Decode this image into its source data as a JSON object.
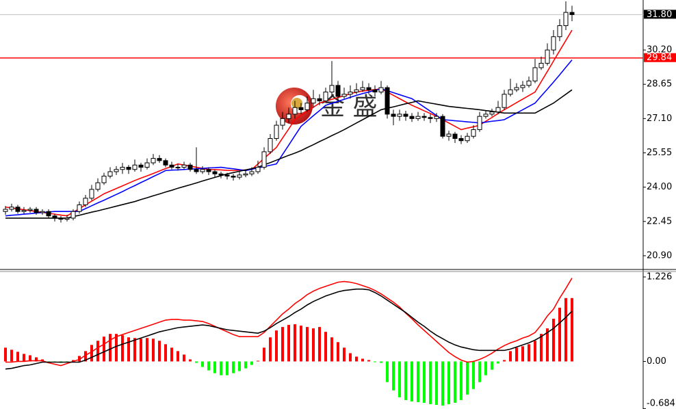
{
  "chart_data": [
    {
      "type": "candlestick",
      "watermark": "金 盛",
      "up_color": "#ffffff",
      "down_color": "#000000",
      "ylim": [
        20.31,
        32.46
      ],
      "yticks": [
        {
          "value": 30.2,
          "label": "30.20"
        },
        {
          "value": 28.65,
          "label": "28.65"
        },
        {
          "value": 27.1,
          "label": "27.10"
        },
        {
          "value": 25.55,
          "label": "25.55"
        },
        {
          "value": 24.0,
          "label": "24.00"
        },
        {
          "value": 22.45,
          "label": "22.45"
        },
        {
          "value": 20.9,
          "label": "20.90"
        }
      ],
      "hlines": [
        {
          "value": 31.8,
          "label": "31.80",
          "color": "#c0c0c0",
          "label_color": "#000000"
        },
        {
          "value": 29.84,
          "label": "29.84",
          "color": "#ff0000",
          "label_color": "#ff0000"
        }
      ],
      "ohlc": [
        [
          22.9,
          23.15,
          22.75,
          23.0
        ],
        [
          23.0,
          23.25,
          22.9,
          23.1
        ],
        [
          23.1,
          23.2,
          22.8,
          22.9
        ],
        [
          22.9,
          23.1,
          22.8,
          22.95
        ],
        [
          22.95,
          23.1,
          22.85,
          23.0
        ],
        [
          23.0,
          23.1,
          22.75,
          22.85
        ],
        [
          22.85,
          23.0,
          22.75,
          22.9
        ],
        [
          22.9,
          23.0,
          22.6,
          22.7
        ],
        [
          22.7,
          22.8,
          22.45,
          22.6
        ],
        [
          22.6,
          22.7,
          22.4,
          22.55
        ],
        [
          22.55,
          22.75,
          22.45,
          22.6
        ],
        [
          22.6,
          23.0,
          22.5,
          22.9
        ],
        [
          22.9,
          23.35,
          22.8,
          23.2
        ],
        [
          23.2,
          23.65,
          23.1,
          23.5
        ],
        [
          23.5,
          24.1,
          23.4,
          23.9
        ],
        [
          23.9,
          24.4,
          23.8,
          24.2
        ],
        [
          24.2,
          24.65,
          24.1,
          24.5
        ],
        [
          24.5,
          24.9,
          24.4,
          24.7
        ],
        [
          24.7,
          24.95,
          24.55,
          24.8
        ],
        [
          24.8,
          25.1,
          24.6,
          24.9
        ],
        [
          24.9,
          25.0,
          24.6,
          24.8
        ],
        [
          24.8,
          25.25,
          24.7,
          25.0
        ],
        [
          25.0,
          25.1,
          24.7,
          24.9
        ],
        [
          24.9,
          25.3,
          24.8,
          25.1
        ],
        [
          25.1,
          25.5,
          25.0,
          25.3
        ],
        [
          25.3,
          25.45,
          25.1,
          25.2
        ],
        [
          25.2,
          25.3,
          24.9,
          25.0
        ],
        [
          25.0,
          25.15,
          24.8,
          24.9
        ],
        [
          24.9,
          25.05,
          24.75,
          24.9
        ],
        [
          24.9,
          25.15,
          24.8,
          25.0
        ],
        [
          25.0,
          25.1,
          24.7,
          24.8
        ],
        [
          24.8,
          25.8,
          24.6,
          24.7
        ],
        [
          24.7,
          24.95,
          24.6,
          24.8
        ],
        [
          24.8,
          24.9,
          24.55,
          24.7
        ],
        [
          24.7,
          24.8,
          24.45,
          24.6
        ],
        [
          24.6,
          24.7,
          24.4,
          24.55
        ],
        [
          24.55,
          24.65,
          24.35,
          24.5
        ],
        [
          24.5,
          24.6,
          24.3,
          24.45
        ],
        [
          24.45,
          24.7,
          24.35,
          24.55
        ],
        [
          24.55,
          24.8,
          24.45,
          24.6
        ],
        [
          24.6,
          24.9,
          24.5,
          24.7
        ],
        [
          24.7,
          25.2,
          24.6,
          24.9
        ],
        [
          24.9,
          25.8,
          24.8,
          25.6
        ],
        [
          25.6,
          26.4,
          25.5,
          26.2
        ],
        [
          26.2,
          27.0,
          26.1,
          26.8
        ],
        [
          26.8,
          27.4,
          26.6,
          27.1
        ],
        [
          27.1,
          27.6,
          26.9,
          27.3
        ],
        [
          27.3,
          27.9,
          27.1,
          27.6
        ],
        [
          27.6,
          27.8,
          27.3,
          27.5
        ],
        [
          27.5,
          28.1,
          27.4,
          27.8
        ],
        [
          27.8,
          28.4,
          27.6,
          28.0
        ],
        [
          28.0,
          28.2,
          27.7,
          27.9
        ],
        [
          27.9,
          28.5,
          27.8,
          28.3
        ],
        [
          28.3,
          29.7,
          28.1,
          28.6
        ],
        [
          28.6,
          28.8,
          27.9,
          28.1
        ],
        [
          28.1,
          28.5,
          28.0,
          28.2
        ],
        [
          28.2,
          28.6,
          28.0,
          28.3
        ],
        [
          28.3,
          28.7,
          28.2,
          28.4
        ],
        [
          28.4,
          28.8,
          28.3,
          28.5
        ],
        [
          28.5,
          28.7,
          28.2,
          28.4
        ],
        [
          28.4,
          28.6,
          28.1,
          28.3
        ],
        [
          28.3,
          28.8,
          28.2,
          28.5
        ],
        [
          28.5,
          28.6,
          27.1,
          27.3
        ],
        [
          27.3,
          27.5,
          26.8,
          27.2
        ],
        [
          27.2,
          27.5,
          27.0,
          27.3
        ],
        [
          27.3,
          27.45,
          27.0,
          27.2
        ],
        [
          27.2,
          27.35,
          26.95,
          27.1
        ],
        [
          27.1,
          27.4,
          27.0,
          27.2
        ],
        [
          27.2,
          27.35,
          27.0,
          27.15
        ],
        [
          27.15,
          27.3,
          26.9,
          27.1
        ],
        [
          27.1,
          27.35,
          26.95,
          27.2
        ],
        [
          27.2,
          27.3,
          26.2,
          26.3
        ],
        [
          26.3,
          26.55,
          26.1,
          26.4
        ],
        [
          26.4,
          26.5,
          26.0,
          26.2
        ],
        [
          26.2,
          26.35,
          25.95,
          26.1
        ],
        [
          26.1,
          26.45,
          26.0,
          26.3
        ],
        [
          26.3,
          26.8,
          26.2,
          26.6
        ],
        [
          26.6,
          27.4,
          26.5,
          27.2
        ],
        [
          27.2,
          27.45,
          27.1,
          27.3
        ],
        [
          27.3,
          27.55,
          27.2,
          27.4
        ],
        [
          27.4,
          27.9,
          27.3,
          27.6
        ],
        [
          27.6,
          28.4,
          27.5,
          28.2
        ],
        [
          28.2,
          28.9,
          28.1,
          28.4
        ],
        [
          28.4,
          28.7,
          28.3,
          28.5
        ],
        [
          28.5,
          28.8,
          28.3,
          28.6
        ],
        [
          28.6,
          29.0,
          28.5,
          28.8
        ],
        [
          28.8,
          29.8,
          28.7,
          29.4
        ],
        [
          29.4,
          29.9,
          29.3,
          29.6
        ],
        [
          29.6,
          30.5,
          29.5,
          30.2
        ],
        [
          30.2,
          31.1,
          30.0,
          30.8
        ],
        [
          30.8,
          31.6,
          30.6,
          31.3
        ],
        [
          31.3,
          32.4,
          31.1,
          31.9
        ],
        [
          31.9,
          32.2,
          31.5,
          31.8
        ]
      ],
      "series": [
        {
          "color": "#ff0000",
          "values": [
            23.1,
            23.06,
            23.02,
            22.98,
            22.94,
            22.9,
            22.86,
            22.82,
            22.78,
            22.74,
            22.7,
            22.87,
            23.03,
            23.2,
            23.37,
            23.53,
            23.7,
            23.82,
            23.94,
            24.06,
            24.18,
            24.3,
            24.41,
            24.51,
            24.62,
            24.73,
            24.84,
            24.94,
            25.05,
            25.0,
            24.95,
            24.9,
            24.85,
            24.8,
            24.79,
            24.78,
            24.76,
            24.75,
            24.77,
            24.78,
            24.8,
            25.05,
            25.3,
            25.55,
            25.8,
            26.22,
            26.63,
            27.05,
            27.24,
            27.43,
            27.61,
            27.8,
            27.88,
            27.97,
            28.05,
            28.13,
            28.22,
            28.3,
            28.34,
            28.38,
            28.41,
            28.45,
            28.3,
            28.15,
            28.0,
            27.85,
            27.7,
            27.58,
            27.45,
            27.33,
            27.2,
            27.05,
            26.9,
            26.75,
            26.6,
            26.67,
            26.73,
            26.8,
            26.98,
            27.15,
            27.33,
            27.5,
            27.66,
            27.82,
            27.98,
            28.14,
            28.3,
            28.77,
            29.23,
            29.7,
            30.17,
            30.63,
            31.1
          ]
        },
        {
          "color": "#0000ff",
          "values": [
            22.7,
            22.73,
            22.75,
            22.78,
            22.8,
            22.83,
            22.85,
            22.88,
            22.9,
            22.9,
            22.9,
            22.9,
            22.9,
            23.03,
            23.16,
            23.29,
            23.41,
            23.54,
            23.67,
            23.8,
            23.94,
            24.07,
            24.21,
            24.34,
            24.48,
            24.61,
            24.75,
            24.77,
            24.78,
            24.8,
            24.82,
            24.83,
            24.85,
            24.87,
            24.88,
            24.9,
            24.86,
            24.83,
            24.79,
            24.75,
            24.81,
            24.87,
            24.93,
            24.99,
            25.05,
            25.48,
            25.9,
            26.33,
            26.75,
            26.99,
            27.23,
            27.46,
            27.7,
            27.79,
            27.88,
            27.97,
            28.06,
            28.15,
            28.23,
            28.3,
            28.38,
            28.45,
            28.36,
            28.27,
            28.18,
            28.09,
            28.0,
            27.81,
            27.62,
            27.43,
            27.24,
            27.05,
            27.03,
            27.0,
            26.98,
            26.95,
            26.93,
            26.9,
            26.94,
            26.98,
            27.01,
            27.05,
            27.2,
            27.35,
            27.5,
            27.65,
            27.8,
            28.12,
            28.43,
            28.75,
            29.08,
            29.42,
            29.75
          ]
        },
        {
          "color": "#000000",
          "values": [
            22.6,
            22.6,
            22.6,
            22.6,
            22.6,
            22.6,
            22.6,
            22.6,
            22.6,
            22.6,
            22.6,
            22.67,
            22.73,
            22.8,
            22.87,
            22.93,
            23.0,
            23.07,
            23.14,
            23.21,
            23.28,
            23.35,
            23.44,
            23.52,
            23.61,
            23.69,
            23.78,
            23.86,
            23.95,
            24.03,
            24.11,
            24.19,
            24.28,
            24.36,
            24.44,
            24.52,
            24.6,
            24.66,
            24.72,
            24.78,
            24.84,
            24.9,
            25.01,
            25.11,
            25.22,
            25.33,
            25.44,
            25.54,
            25.65,
            25.79,
            25.92,
            26.06,
            26.19,
            26.33,
            26.46,
            26.6,
            26.75,
            26.9,
            27.05,
            27.2,
            27.35,
            27.5,
            27.57,
            27.63,
            27.7,
            27.77,
            27.83,
            27.9,
            27.85,
            27.8,
            27.75,
            27.7,
            27.65,
            27.62,
            27.59,
            27.56,
            27.53,
            27.5,
            27.46,
            27.43,
            27.39,
            27.35,
            27.35,
            27.35,
            27.35,
            27.35,
            27.35,
            27.5,
            27.65,
            27.8,
            28.0,
            28.2,
            28.4
          ]
        }
      ]
    },
    {
      "type": "macd",
      "ylim": [
        -0.69,
        1.305
      ],
      "yticks": [
        1.226,
        {
          "value": 0,
          "label": "0.00"
        },
        -0.684
      ],
      "positive_color": "#ff0000",
      "negative_color": "#00ff00",
      "values": [
        0.2,
        0.17,
        0.14,
        0.11,
        0.09,
        0.06,
        0.03,
        -0.01,
        -0.01,
        -0.02,
        -0.01,
        0.02,
        0.08,
        0.15,
        0.24,
        0.3,
        0.36,
        0.4,
        0.4,
        0.38,
        0.35,
        0.34,
        0.33,
        0.34,
        0.33,
        0.3,
        0.25,
        0.2,
        0.15,
        0.1,
        0.03,
        -0.02,
        -0.08,
        -0.13,
        -0.17,
        -0.2,
        -0.2,
        -0.17,
        -0.14,
        -0.1,
        -0.05,
        0.01,
        0.2,
        0.35,
        0.45,
        0.5,
        0.53,
        0.54,
        0.52,
        0.5,
        0.48,
        0.5,
        0.43,
        0.35,
        0.28,
        0.2,
        0.12,
        0.07,
        0.04,
        0.02,
        -0.01,
        -0.02,
        -0.3,
        -0.42,
        -0.52,
        -0.56,
        -0.58,
        -0.59,
        -0.6,
        -0.62,
        -0.63,
        -0.64,
        -0.62,
        -0.6,
        -0.56,
        -0.48,
        -0.4,
        -0.3,
        -0.2,
        -0.12,
        -0.03,
        0.02,
        0.15,
        0.2,
        0.22,
        0.25,
        0.3,
        0.4,
        0.48,
        0.62,
        0.78,
        0.92,
        0.92
      ],
      "series": [
        {
          "color": "#ff0000",
          "values": [
            -0.01,
            -0.01,
            0.0,
            0.0,
            0.01,
            0.01,
            0.01,
            -0.02,
            -0.04,
            -0.06,
            -0.03,
            0.0,
            0.03,
            0.09,
            0.14,
            0.2,
            0.25,
            0.31,
            0.36,
            0.39,
            0.42,
            0.45,
            0.48,
            0.51,
            0.54,
            0.57,
            0.6,
            0.61,
            0.61,
            0.6,
            0.6,
            0.59,
            0.58,
            0.55,
            0.51,
            0.47,
            0.43,
            0.39,
            0.36,
            0.36,
            0.36,
            0.36,
            0.42,
            0.51,
            0.6,
            0.69,
            0.76,
            0.84,
            0.9,
            0.97,
            1.02,
            1.06,
            1.09,
            1.12,
            1.15,
            1.16,
            1.15,
            1.13,
            1.1,
            1.07,
            1.03,
            0.98,
            0.92,
            0.86,
            0.79,
            0.7,
            0.62,
            0.53,
            0.45,
            0.37,
            0.29,
            0.21,
            0.13,
            0.07,
            0.02,
            -0.01,
            0.0,
            0.03,
            0.07,
            0.12,
            0.18,
            0.23,
            0.27,
            0.3,
            0.34,
            0.37,
            0.42,
            0.53,
            0.66,
            0.76,
            0.92,
            1.06,
            1.21
          ]
        },
        {
          "color": "#000000",
          "values": [
            -0.11,
            -0.1,
            -0.08,
            -0.06,
            -0.05,
            -0.03,
            -0.01,
            -0.01,
            -0.01,
            -0.01,
            -0.01,
            -0.01,
            -0.01,
            0.02,
            0.06,
            0.1,
            0.14,
            0.18,
            0.22,
            0.25,
            0.28,
            0.31,
            0.34,
            0.37,
            0.4,
            0.43,
            0.45,
            0.47,
            0.49,
            0.5,
            0.51,
            0.52,
            0.53,
            0.52,
            0.5,
            0.48,
            0.46,
            0.45,
            0.44,
            0.43,
            0.42,
            0.41,
            0.44,
            0.49,
            0.55,
            0.6,
            0.65,
            0.71,
            0.76,
            0.82,
            0.87,
            0.91,
            0.95,
            0.98,
            1.01,
            1.03,
            1.04,
            1.05,
            1.05,
            1.04,
            1.0,
            0.95,
            0.89,
            0.83,
            0.77,
            0.71,
            0.64,
            0.57,
            0.51,
            0.44,
            0.38,
            0.33,
            0.28,
            0.24,
            0.21,
            0.19,
            0.17,
            0.16,
            0.16,
            0.16,
            0.16,
            0.16,
            0.18,
            0.21,
            0.24,
            0.27,
            0.31,
            0.36,
            0.42,
            0.48,
            0.56,
            0.64,
            0.73
          ]
        }
      ]
    }
  ]
}
